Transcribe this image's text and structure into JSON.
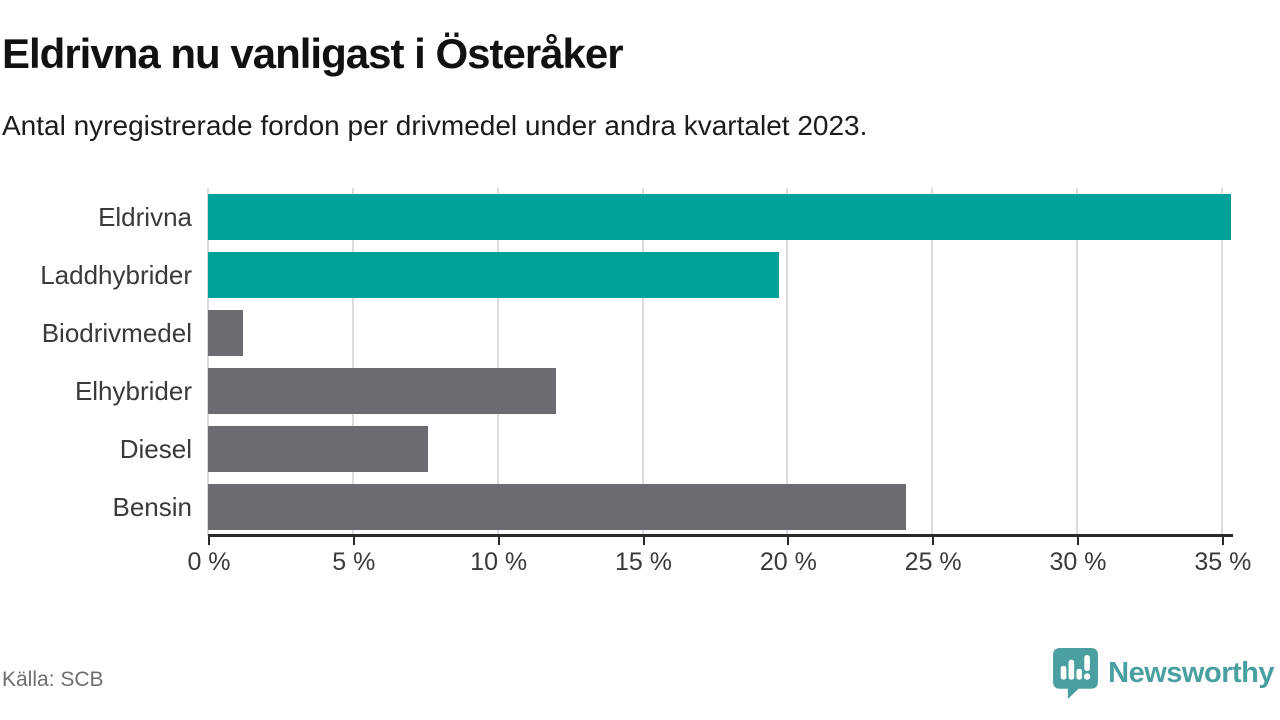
{
  "header": {
    "title": "Eldrivna nu vanligast i Österåker",
    "subtitle": "Antal nyregistrerade fordon per drivmedel under andra kvartalet 2023."
  },
  "footer": {
    "source": "Källa: SCB",
    "logo_text": "Newsworthy",
    "logo_icon": "speech-bubble-bar-chart-icon"
  },
  "colors": {
    "highlight_teal": "#00a199",
    "bar_gray": "#6b6b72",
    "gridline": "#dcdcdc",
    "axis": "#2a2a2a",
    "logo_teal": "#4aa0a0",
    "text_dark": "#111111",
    "text_label": "#3a3a3a",
    "text_source": "#6e6e6e"
  },
  "chart_data": {
    "type": "bar",
    "orientation": "horizontal",
    "title": "Eldrivna nu vanligast i Österåker",
    "subtitle": "Antal nyregistrerade fordon per drivmedel under andra kvartalet 2023.",
    "categories": [
      "Eldrivna",
      "Laddhybrider",
      "Biodrivmedel",
      "Elhybrider",
      "Diesel",
      "Bensin"
    ],
    "values": [
      35.3,
      19.7,
      1.2,
      12.0,
      7.6,
      24.1
    ],
    "unit": "%",
    "highlighted": [
      true,
      true,
      false,
      false,
      false,
      false
    ],
    "xlim": [
      0,
      35.35
    ],
    "xticks": [
      0,
      5,
      10,
      15,
      20,
      25,
      30,
      35
    ],
    "xtick_labels": [
      "0 %",
      "5 %",
      "10 %",
      "15 %",
      "20 %",
      "25 %",
      "30 %",
      "35 %"
    ],
    "grid": "vertical",
    "legend": "none",
    "source": "SCB"
  }
}
